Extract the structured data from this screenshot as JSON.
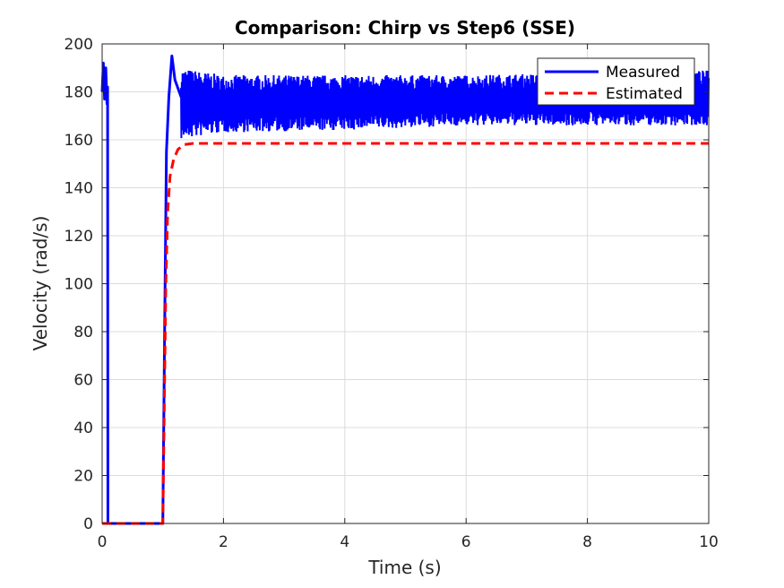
{
  "chart_data": {
    "type": "line",
    "title": "Comparison: Chirp vs Step6 (SSE)",
    "xlabel": "Time (s)",
    "ylabel": "Velocity (rad/s)",
    "xlim": [
      0,
      10
    ],
    "ylim": [
      0,
      200
    ],
    "xticks": [
      0,
      2,
      4,
      6,
      8,
      10
    ],
    "yticks": [
      0,
      20,
      40,
      60,
      80,
      100,
      120,
      140,
      160,
      180,
      200
    ],
    "grid": true,
    "legend_position": "top-right",
    "series": [
      {
        "name": "Measured",
        "color": "#0000ff",
        "style": "solid",
        "description_points": [
          [
            0.0,
            180
          ],
          [
            0.02,
            192
          ],
          [
            0.04,
            177
          ],
          [
            0.06,
            190
          ],
          [
            0.08,
            175
          ],
          [
            0.09,
            182
          ],
          [
            0.095,
            0
          ],
          [
            1.0,
            0
          ],
          [
            1.03,
            80
          ],
          [
            1.06,
            155
          ],
          [
            1.1,
            178
          ],
          [
            1.15,
            195
          ],
          [
            1.2,
            185
          ],
          [
            1.3,
            178
          ],
          [
            1.5,
            172
          ],
          [
            2.0,
            174
          ],
          [
            4.0,
            175
          ],
          [
            6.0,
            175
          ],
          [
            8.0,
            176
          ],
          [
            10.0,
            176
          ]
        ],
        "noise_band": [
          [
            1.3,
            160,
            190
          ],
          [
            2.0,
            163,
            187
          ],
          [
            4.0,
            164,
            187
          ],
          [
            6.0,
            166,
            187
          ],
          [
            8.0,
            166,
            188
          ],
          [
            10.0,
            166,
            189
          ]
        ]
      },
      {
        "name": "Estimated",
        "color": "#ff0000",
        "style": "dashed",
        "points": [
          [
            0.0,
            0
          ],
          [
            1.0,
            0
          ],
          [
            1.02,
            40
          ],
          [
            1.05,
            100
          ],
          [
            1.08,
            130
          ],
          [
            1.12,
            145
          ],
          [
            1.18,
            152
          ],
          [
            1.25,
            156
          ],
          [
            1.35,
            158
          ],
          [
            1.5,
            158.5
          ],
          [
            10.0,
            158.5
          ]
        ]
      }
    ]
  }
}
